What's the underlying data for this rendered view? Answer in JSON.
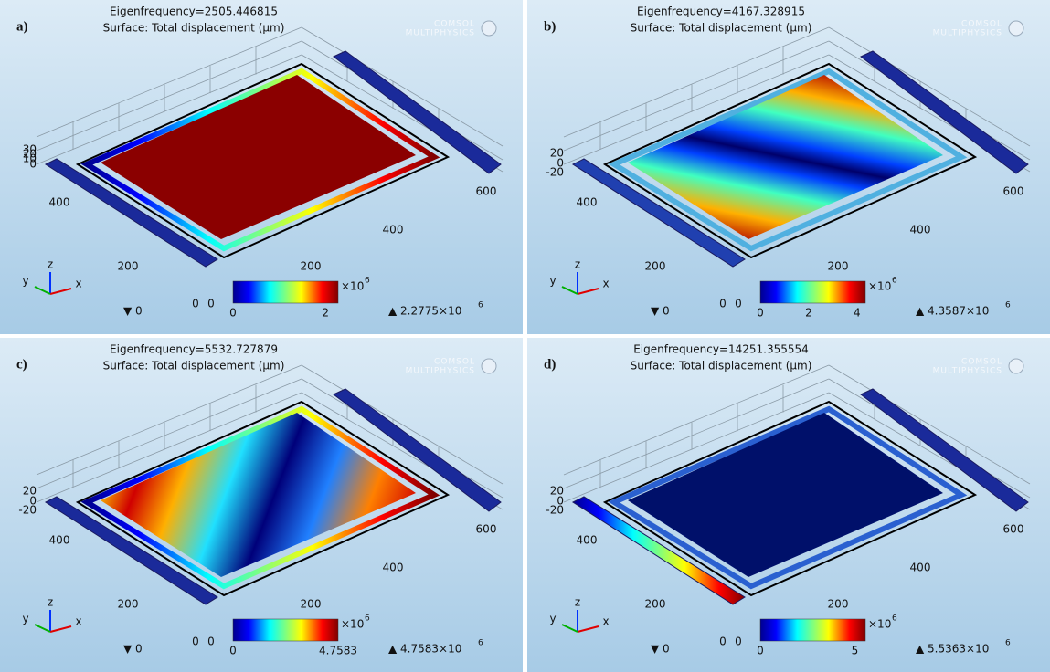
{
  "shared": {
    "watermark": [
      "COMSOL",
      "MULTIPHYSICS"
    ],
    "triad": {
      "x": "x",
      "y": "y",
      "z": "z"
    },
    "colorbar_unit": "×10",
    "colorbar_exp": "6"
  },
  "panels": [
    {
      "label": "a)",
      "title": "Eigenfrequency=2505.446815",
      "subtitle": "Surface: Total displacement (µm)",
      "z_ticks": [
        "30",
        "20",
        "10",
        "0"
      ],
      "y_ticks": [
        "400",
        "200",
        "0"
      ],
      "x_ticks": [
        "0",
        "200",
        "400",
        "600"
      ],
      "colorbar_ticks": [
        "0",
        "2"
      ],
      "min": "▼ 0",
      "max": "▲ 2.2775×10",
      "max_exp": "6"
    },
    {
      "label": "b)",
      "title": "Eigenfrequency=4167.328915",
      "subtitle": "Surface: Total displacement (µm)",
      "z_ticks": [
        "20",
        "0",
        "-20"
      ],
      "y_ticks": [
        "400",
        "200",
        "0"
      ],
      "x_ticks": [
        "0",
        "200",
        "400",
        "600"
      ],
      "colorbar_ticks": [
        "0",
        "2",
        "4"
      ],
      "min": "▼ 0",
      "max": "▲ 4.3587×10",
      "max_exp": "6"
    },
    {
      "label": "c)",
      "title": "Eigenfrequency=5532.727879",
      "subtitle": "Surface: Total displacement (µm)",
      "z_ticks": [
        "20",
        "0",
        "-20"
      ],
      "y_ticks": [
        "400",
        "200",
        "0"
      ],
      "x_ticks": [
        "0",
        "200",
        "400",
        "600"
      ],
      "colorbar_ticks": [
        "0",
        "4.7583"
      ],
      "min": "▼ 0",
      "max": "▲ 4.7583×10",
      "max_exp": "6"
    },
    {
      "label": "d)",
      "title": "Eigenfrequency=14251.355554",
      "subtitle": "Surface: Total displacement (µm)",
      "z_ticks": [
        "20",
        "0",
        "-20"
      ],
      "y_ticks": [
        "400",
        "200",
        "0"
      ],
      "x_ticks": [
        "0",
        "200",
        "400",
        "600"
      ],
      "colorbar_ticks": [
        "0",
        "5"
      ],
      "min": "▼ 0",
      "max": "▲ 5.5363×10",
      "max_exp": "6"
    }
  ]
}
